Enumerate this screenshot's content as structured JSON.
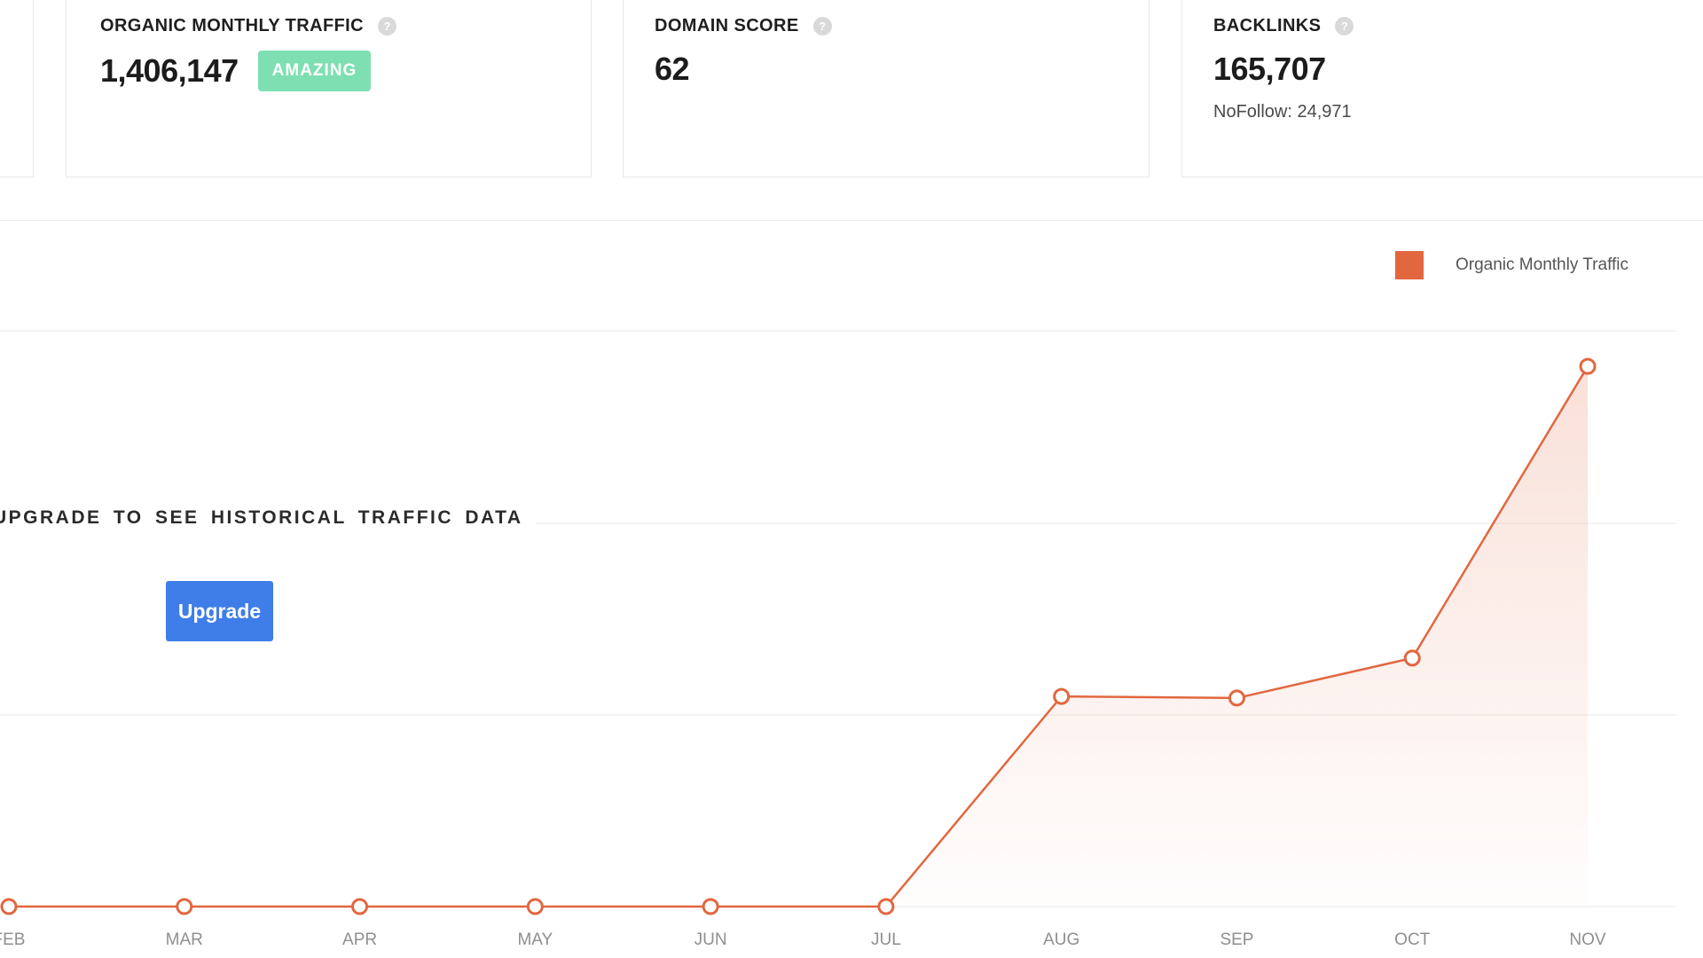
{
  "cards": [
    {
      "title": "ORGANIC MONTHLY TRAFFIC",
      "value": "1,406,147",
      "badge": "AMAZING"
    },
    {
      "title": "DOMAIN SCORE",
      "value": "62"
    },
    {
      "title": "BACKLINKS",
      "value": "165,707",
      "sub": "NoFollow: 24,971"
    }
  ],
  "icons": {
    "help": "?"
  },
  "legend": {
    "label": "Organic Monthly Traffic"
  },
  "upgrade": {
    "message": "UPGRADE TO SEE HISTORICAL TRAFFIC DATA",
    "button_label": "Upgrade"
  },
  "colors": {
    "accent_orange": "#e2673f",
    "badge_green": "#7edfb2",
    "button_blue": "#3f7de8"
  },
  "chart_data": {
    "type": "area",
    "title": "",
    "categories": [
      "FEB",
      "MAR",
      "APR",
      "MAY",
      "JUN",
      "JUL",
      "AUG",
      "SEP",
      "OCT",
      "NOV"
    ],
    "series": [
      {
        "name": "Organic Monthly Traffic",
        "values_relative_to_max": [
          0,
          0,
          0,
          0,
          0,
          0,
          0.389,
          0.386,
          0.46,
          1.0
        ]
      }
    ],
    "y_axis": "unlabeled - historical values hidden behind upgrade paywall",
    "xlabel": "",
    "ylabel": "",
    "line_color": "#e2673f",
    "point_style": "white-filled circles with orange stroke",
    "area_fill": "vertical fade of line color to white",
    "grid": "horizontal light-gray lines",
    "legend_position": "top-right"
  }
}
